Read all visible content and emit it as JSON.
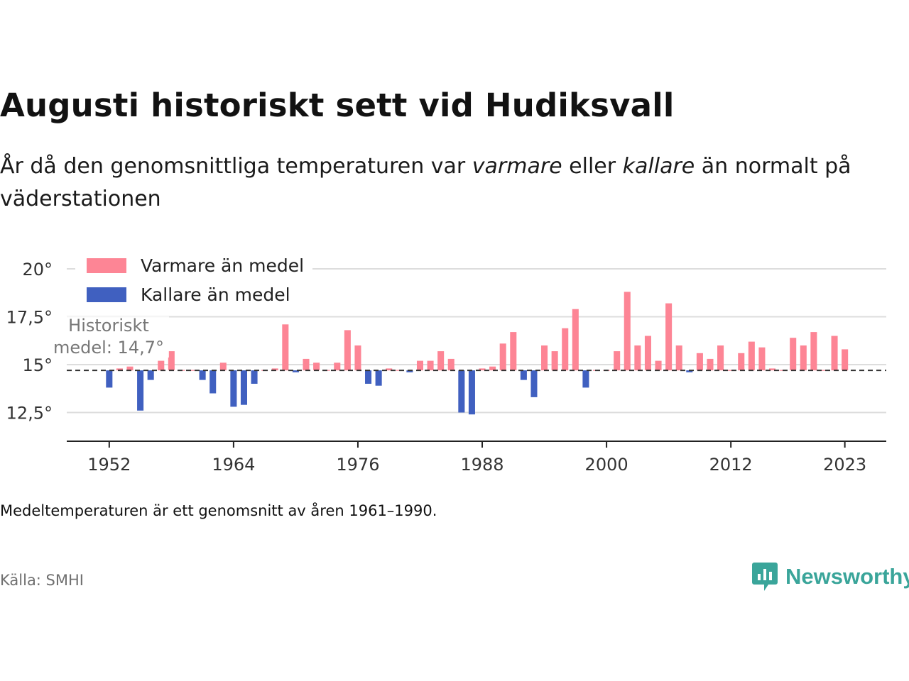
{
  "header": {
    "title": "Augusti historiskt sett vid Hudiksvall",
    "subtitle_pre": "År då den genomsnittliga temperaturen var ",
    "subtitle_warm": "varmare",
    "subtitle_mid": " eller ",
    "subtitle_cold": "kallare",
    "subtitle_post": " än normalt på väderstationen"
  },
  "chart_data": {
    "type": "bar",
    "baseline": 14.7,
    "baseline_label_line1": "Historiskt",
    "baseline_label_line2": "medel: 14,7°",
    "ylim": [
      11,
      21
    ],
    "yticks": [
      12.5,
      15,
      17.5,
      20
    ],
    "ytick_labels": [
      "12,5°",
      "15°",
      "17,5°",
      "20°"
    ],
    "xlim": [
      1947.9,
      2027
    ],
    "xticks": [
      1952,
      1964,
      1976,
      1988,
      2000,
      2012,
      2023
    ],
    "xtick_labels": [
      "1952",
      "1964",
      "1976",
      "1988",
      "2000",
      "2012",
      "2023"
    ],
    "legend": {
      "position": "top-left",
      "items": [
        {
          "label": "Varmare än medel",
          "color": "#fd8595"
        },
        {
          "label": "Kallare än medel",
          "color": "#4060c0"
        }
      ]
    },
    "colors": {
      "warm": "#fd8595",
      "cold": "#4060c0"
    },
    "x": [
      1952,
      1953,
      1954,
      1955,
      1956,
      1957,
      1958,
      1959,
      1960,
      1961,
      1962,
      1963,
      1964,
      1965,
      1966,
      1967,
      1968,
      1969,
      1970,
      1971,
      1972,
      1973,
      1974,
      1975,
      1976,
      1977,
      1978,
      1979,
      1980,
      1981,
      1982,
      1983,
      1984,
      1985,
      1986,
      1987,
      1988,
      1989,
      1990,
      1991,
      1992,
      1993,
      1994,
      1995,
      1996,
      1997,
      1998,
      1999,
      2000,
      2001,
      2002,
      2003,
      2004,
      2005,
      2006,
      2007,
      2008,
      2009,
      2010,
      2011,
      2012,
      2013,
      2014,
      2015,
      2016,
      2017,
      2018,
      2019,
      2020,
      2021,
      2022,
      2023
    ],
    "values": [
      13.8,
      14.8,
      14.9,
      12.6,
      14.2,
      15.2,
      15.7,
      14.7,
      14.7,
      14.2,
      13.5,
      15.1,
      12.8,
      12.9,
      14.0,
      14.7,
      14.8,
      17.1,
      14.6,
      15.3,
      15.1,
      14.7,
      15.1,
      16.8,
      16.0,
      14.0,
      13.9,
      14.8,
      14.7,
      14.6,
      15.2,
      15.2,
      15.7,
      15.3,
      12.5,
      12.4,
      14.8,
      14.9,
      16.1,
      16.7,
      14.2,
      13.3,
      16.0,
      15.7,
      16.9,
      17.9,
      13.8,
      14.7,
      14.7,
      15.7,
      18.8,
      16.0,
      16.5,
      15.2,
      18.2,
      16.0,
      14.6,
      15.6,
      15.3,
      16.0,
      14.7,
      15.6,
      16.2,
      15.9,
      14.8,
      14.7,
      16.4,
      16.0,
      16.7,
      14.7,
      16.5,
      15.8
    ]
  },
  "footer": {
    "note": "Medeltemperaturen är ett genomsnitt av åren 1961–1990.",
    "source": "Källa: SMHI",
    "brand": "Newsworthy",
    "brand_color": "#3aa59a"
  }
}
